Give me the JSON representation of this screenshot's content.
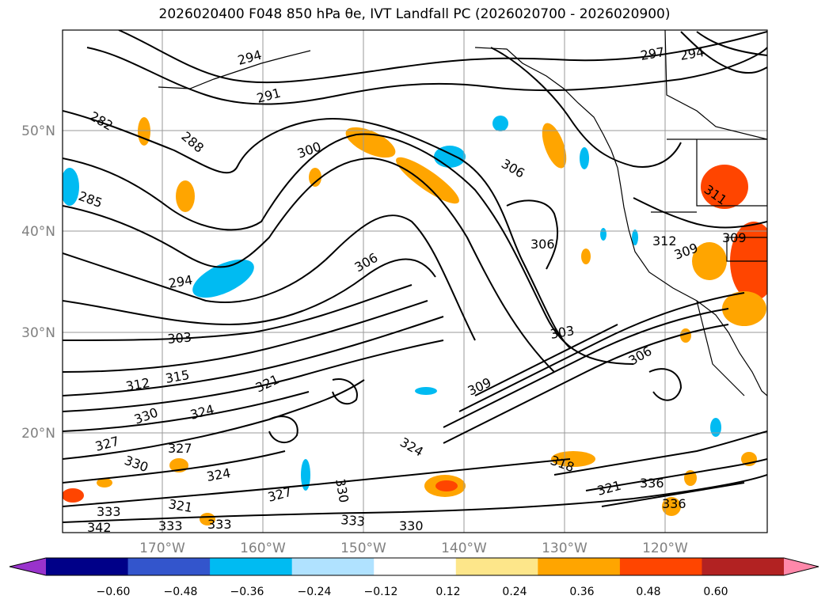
{
  "map": {
    "title": "2026020400 F048 850 hPa θe, IVT Landfall PC (2026020700 - 2026020900)",
    "lat_labels": [
      "50°N",
      "40°N",
      "30°N",
      "20°N"
    ],
    "lon_labels": [
      "170°W",
      "160°W",
      "150°W",
      "140°W",
      "130°W",
      "120°W"
    ],
    "colorbar": {
      "tick_labels": [
        "−0.60",
        "−0.48",
        "−0.36",
        "−0.24",
        "−0.12",
        "0.12",
        "0.24",
        "0.36",
        "0.48",
        "0.60"
      ],
      "colors": [
        "#9933cc",
        "#000088",
        "#3355cc",
        "#00bbf2",
        "#b0e2ff",
        "#ffffff",
        "#fde68a",
        "#ffa500",
        "#ff4500",
        "#b22222",
        "#ff88aa"
      ]
    },
    "contour_labels": [
      "294",
      "291",
      "297",
      "294",
      "288",
      "282",
      "285",
      "300",
      "306",
      "306",
      "312",
      "309",
      "311",
      "309",
      "294",
      "306",
      "303",
      "303",
      "306",
      "312",
      "315",
      "321",
      "309",
      "330",
      "324",
      "327",
      "324",
      "327",
      "330",
      "324",
      "318",
      "321",
      "336",
      "336",
      "321",
      "327",
      "330",
      "333",
      "330",
      "333",
      "333",
      "333",
      "342"
    ]
  }
}
